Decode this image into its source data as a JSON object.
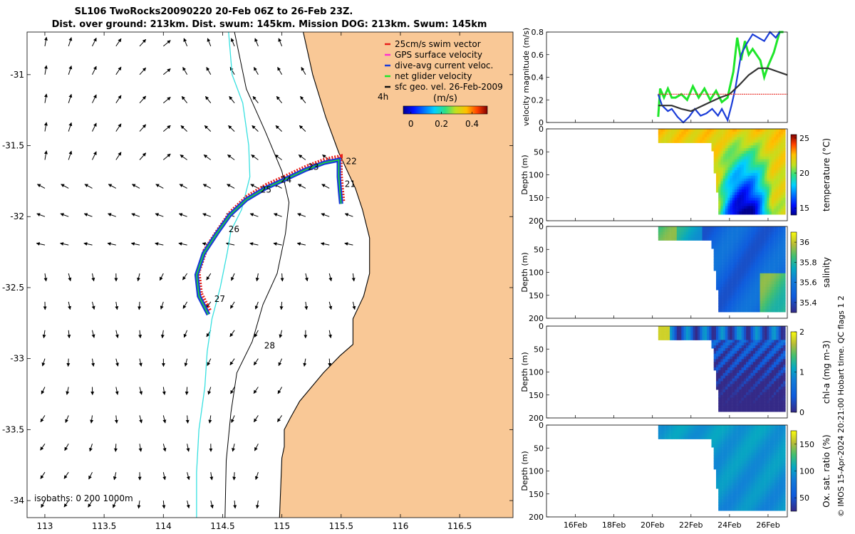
{
  "titles": {
    "line1": "SL106 TwoRocks20090220 20-Feb 06Z to 26-Feb 23Z.",
    "line2": "Dist. over ground: 213km. Dist. swum: 145km. Mission DOG: 213km. Swum: 145km"
  },
  "map": {
    "xlim": [
      112.85,
      116.95
    ],
    "ylim": [
      -34.12,
      -30.7
    ],
    "xticks": [
      113,
      113.5,
      114,
      114.5,
      115,
      115.5,
      116,
      116.5
    ],
    "xtick_labels": [
      "113",
      "113.5",
      "114",
      "114.5",
      "115",
      "115.5",
      "116",
      "116.5"
    ],
    "yticks": [
      -31,
      -31.5,
      -32,
      -32.5,
      -33,
      -33.5,
      -34
    ],
    "ytick_labels": [
      "-31",
      "-31.5",
      "-32",
      "-32.5",
      "-33",
      "-33.5",
      "-34"
    ],
    "isobath_label": "isobaths: 0   200  1000m",
    "day_labels": [
      {
        "text": "21",
        "lon": 115.53,
        "lat": -31.79
      },
      {
        "text": "22",
        "lon": 115.54,
        "lat": -31.63
      },
      {
        "text": "23",
        "lon": 115.22,
        "lat": -31.67
      },
      {
        "text": "24",
        "lon": 114.99,
        "lat": -31.76
      },
      {
        "text": "25",
        "lon": 114.82,
        "lat": -31.83
      },
      {
        "text": "26",
        "lon": 114.55,
        "lat": -32.11
      },
      {
        "text": "27",
        "lon": 114.43,
        "lat": -32.6
      },
      {
        "text": "28",
        "lon": 114.85,
        "lat": -32.93
      }
    ],
    "hours_label": "4h",
    "colorbar": {
      "title": "(m/s)",
      "ticks": [
        0,
        0.2,
        0.4
      ],
      "tick_labels": [
        "0",
        "0.2",
        "0.4"
      ],
      "range": [
        -0.05,
        0.5
      ]
    },
    "legend": [
      {
        "label": "25cm/s swim vector",
        "color": "#e8201a"
      },
      {
        "label": "GPS surface velocity",
        "color": "#ff30d0"
      },
      {
        "label": "dive-avg current veloc.",
        "color": "#1a3cd8"
      },
      {
        "label": "net glider velocity",
        "color": "#1ee62a"
      },
      {
        "label": "sfc geo. vel. 26-Feb-2009",
        "color": "#111111"
      }
    ],
    "track": [
      [
        115.5,
        -31.91
      ],
      [
        115.49,
        -31.82
      ],
      [
        115.48,
        -31.72
      ],
      [
        115.48,
        -31.6
      ],
      [
        115.36,
        -31.62
      ],
      [
        115.2,
        -31.67
      ],
      [
        115.02,
        -31.74
      ],
      [
        114.86,
        -31.8
      ],
      [
        114.7,
        -31.88
      ],
      [
        114.56,
        -31.99
      ],
      [
        114.45,
        -32.12
      ],
      [
        114.34,
        -32.26
      ],
      [
        114.28,
        -32.41
      ],
      [
        114.3,
        -32.56
      ],
      [
        114.38,
        -32.69
      ]
    ],
    "coast": [
      [
        115.18,
        -30.7
      ],
      [
        115.26,
        -31.0
      ],
      [
        115.37,
        -31.3
      ],
      [
        115.48,
        -31.55
      ],
      [
        115.62,
        -31.8
      ],
      [
        115.68,
        -31.95
      ],
      [
        115.74,
        -32.15
      ],
      [
        115.74,
        -32.4
      ],
      [
        115.69,
        -32.56
      ],
      [
        115.6,
        -32.72
      ],
      [
        115.6,
        -32.9
      ],
      [
        115.49,
        -32.98
      ],
      [
        115.35,
        -33.1
      ],
      [
        115.15,
        -33.3
      ],
      [
        115.07,
        -33.42
      ],
      [
        115.02,
        -33.5
      ],
      [
        115.02,
        -33.62
      ],
      [
        115.0,
        -33.7
      ],
      [
        114.98,
        -34.12
      ]
    ],
    "iso200": [
      [
        114.6,
        -30.7
      ],
      [
        114.7,
        -31.1
      ],
      [
        114.86,
        -31.4
      ],
      [
        115.0,
        -31.68
      ],
      [
        115.06,
        -31.9
      ],
      [
        115.03,
        -32.12
      ],
      [
        114.96,
        -32.4
      ],
      [
        114.84,
        -32.62
      ],
      [
        114.75,
        -32.88
      ],
      [
        114.62,
        -33.1
      ],
      [
        114.57,
        -33.38
      ],
      [
        114.53,
        -33.72
      ],
      [
        114.52,
        -34.12
      ]
    ],
    "iso1000": [
      [
        114.55,
        -30.7
      ],
      [
        114.58,
        -31.0
      ],
      [
        114.67,
        -31.2
      ],
      [
        114.72,
        -31.5
      ],
      [
        114.73,
        -31.72
      ],
      [
        114.66,
        -31.95
      ],
      [
        114.57,
        -32.1
      ],
      [
        114.54,
        -32.25
      ],
      [
        114.48,
        -32.5
      ],
      [
        114.41,
        -32.72
      ],
      [
        114.37,
        -32.95
      ],
      [
        114.35,
        -33.2
      ],
      [
        114.3,
        -33.5
      ],
      [
        114.28,
        -33.8
      ],
      [
        114.28,
        -34.12
      ]
    ],
    "colors": {
      "land": "#f9c896",
      "iso_cyan": "#37e0e0",
      "track_blue": "#1a3cd8",
      "track_red": "#e8201a",
      "track_green": "#1ee62a"
    }
  },
  "chart_data": [
    {
      "type": "line",
      "title": "velocity magnitude",
      "ylabel": "velocity magnitude (m/s)",
      "ylim": [
        0,
        0.8
      ],
      "yticks": [
        0,
        0.2,
        0.4,
        0.6,
        0.8
      ],
      "ytick_labels": [
        "0",
        "0.2",
        "0.4",
        "0.6",
        "0.8"
      ],
      "xlim": [
        14.5,
        27.0
      ],
      "xticks": [
        16,
        18,
        20,
        22,
        24,
        26
      ],
      "xtick_labels": [
        "16Feb",
        "18Feb",
        "20Feb",
        "22Feb",
        "24Feb",
        "26Feb"
      ],
      "series": [
        {
          "name": "net glider velocity",
          "color": "#1ee62a",
          "x": [
            20.3,
            20.4,
            20.6,
            20.8,
            21.0,
            21.2,
            21.5,
            21.8,
            22.1,
            22.4,
            22.7,
            23.0,
            23.3,
            23.6,
            23.9,
            24.0,
            24.2,
            24.4,
            24.6,
            24.8,
            25.0,
            25.2,
            25.4,
            25.6,
            25.8,
            26.0,
            26.3,
            26.6,
            26.8
          ],
          "y": [
            0.05,
            0.3,
            0.22,
            0.3,
            0.22,
            0.22,
            0.25,
            0.2,
            0.32,
            0.22,
            0.3,
            0.2,
            0.28,
            0.18,
            0.22,
            0.3,
            0.45,
            0.75,
            0.55,
            0.72,
            0.6,
            0.65,
            0.6,
            0.55,
            0.4,
            0.5,
            0.62,
            0.8,
            0.8
          ]
        },
        {
          "name": "dive-avg current veloc.",
          "color": "#1a3cd8",
          "x": [
            20.3,
            20.5,
            20.8,
            21.0,
            21.3,
            21.6,
            21.9,
            22.2,
            22.5,
            22.8,
            23.1,
            23.4,
            23.6,
            23.9,
            24.1,
            24.3,
            24.6,
            24.9,
            25.2,
            25.5,
            25.8,
            26.1,
            26.4,
            26.6
          ],
          "y": [
            0.25,
            0.15,
            0.1,
            0.12,
            0.05,
            0.0,
            0.05,
            0.12,
            0.06,
            0.08,
            0.12,
            0.06,
            0.12,
            0.02,
            0.15,
            0.3,
            0.6,
            0.7,
            0.78,
            0.75,
            0.72,
            0.85,
            0.75,
            0.82
          ]
        },
        {
          "name": "sfc geo. vel.",
          "color": "#333333",
          "x": [
            20.3,
            21.0,
            21.5,
            22.0,
            22.5,
            23.0,
            23.5,
            24.0,
            24.5,
            25.0,
            25.5,
            26.0,
            26.5,
            27.0
          ],
          "y": [
            0.15,
            0.15,
            0.12,
            0.1,
            0.14,
            0.18,
            0.22,
            0.25,
            0.33,
            0.42,
            0.48,
            0.48,
            0.45,
            0.42
          ]
        },
        {
          "name": "25cm/s swim vector",
          "color": "#e8201a",
          "x": [
            20.3,
            27.0
          ],
          "y": [
            0.25,
            0.25
          ]
        }
      ]
    },
    {
      "type": "heatmap",
      "name": "temperature",
      "ylabel": "Depth (m)",
      "clabel": "temperature (°C)",
      "ylim": [
        200,
        0
      ],
      "yticks": [
        0,
        50,
        100,
        150,
        200
      ],
      "cticks": [
        15,
        20,
        25
      ],
      "crange": [
        14,
        25.5
      ]
    },
    {
      "type": "heatmap",
      "name": "salinity",
      "ylabel": "Depth (m)",
      "clabel": "salinity",
      "ylim": [
        200,
        0
      ],
      "yticks": [
        0,
        50,
        100,
        150,
        200
      ],
      "cticks": [
        35.4,
        35.6,
        35.8,
        36
      ],
      "crange": [
        35.3,
        36.1
      ]
    },
    {
      "type": "heatmap",
      "name": "chl-a",
      "ylabel": "Depth (m)",
      "clabel": "chl-a (mg m-3)",
      "ylim": [
        200,
        0
      ],
      "yticks": [
        0,
        50,
        100,
        150,
        200
      ],
      "cticks": [
        0,
        1,
        2
      ],
      "crange": [
        0,
        2
      ]
    },
    {
      "type": "heatmap",
      "name": "oxygen",
      "ylabel": "Depth (m)",
      "clabel": "Ox. sat. ratio (%)",
      "ylim": [
        200,
        0
      ],
      "yticks": [
        0,
        50,
        100,
        150,
        200
      ],
      "cticks": [
        50,
        100,
        150
      ],
      "crange": [
        25,
        175
      ]
    }
  ],
  "copyright": "© IMOS 15-Apr-2024 20:21:00 Hobart time. QC flags 1  2"
}
